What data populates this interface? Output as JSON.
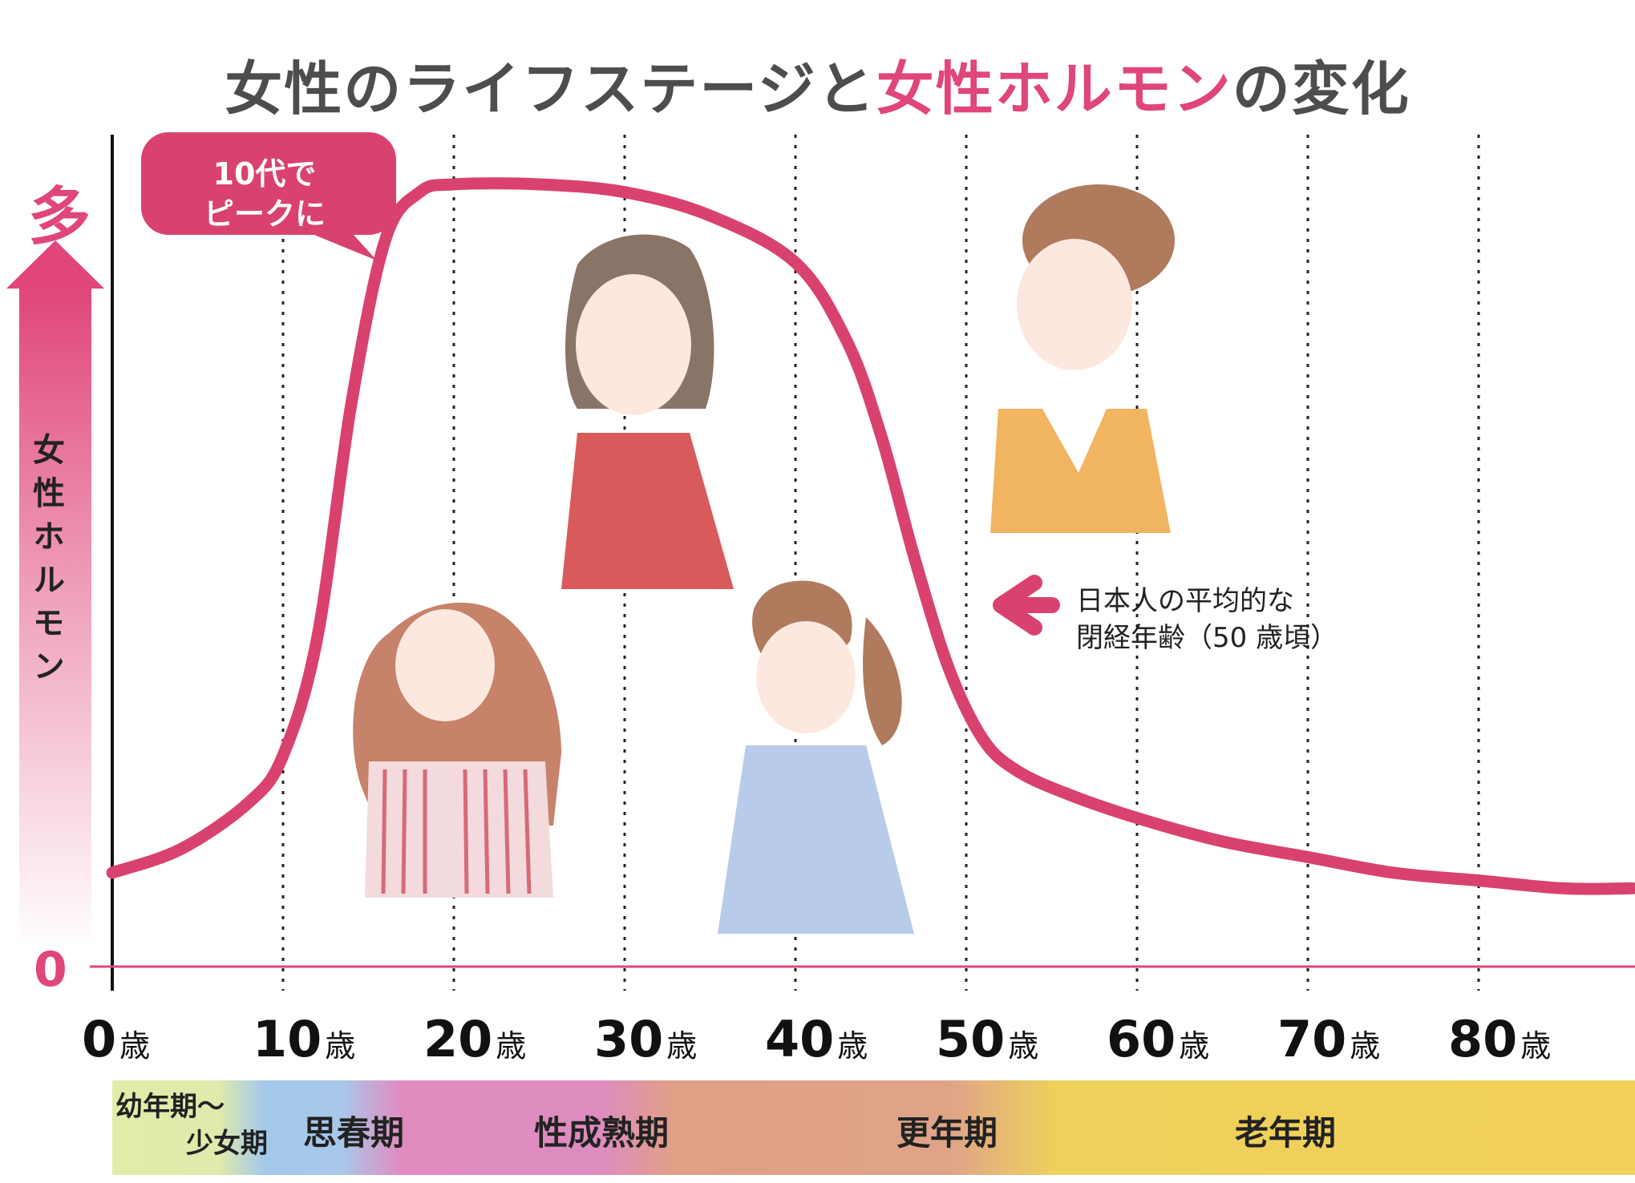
{
  "title": {
    "part1": "女性のライフステージと",
    "part2": "女性ホルモン",
    "part3": "の変化"
  },
  "colors": {
    "accent": "#e0457b",
    "curve": "#d9426f",
    "text": "#4d4d4d"
  },
  "y_axis": {
    "top_label": "多",
    "zero_label": "0",
    "label": "女性ホルモン"
  },
  "callout": {
    "line1": "10代で",
    "line2": "ピークに"
  },
  "menopause_note": {
    "line1": "日本人の平均的な",
    "line2": "閉経年齢（50 歳頃）"
  },
  "stages": [
    {
      "line1": "幼年期〜",
      "line2": "少女期"
    },
    {
      "label": "思春期"
    },
    {
      "label": "性成熟期"
    },
    {
      "label": "更年期"
    },
    {
      "label": "老年期"
    }
  ],
  "chart_data": {
    "type": "line",
    "title": "女性のライフステージと女性ホルモンの変化",
    "xlabel": "",
    "ylabel": "女性ホルモン",
    "tick_unit": "歳",
    "x_ticks": [
      0,
      10,
      20,
      30,
      40,
      50,
      60,
      70,
      80
    ],
    "xlim": [
      0,
      89
    ],
    "ylim": [
      0,
      100
    ],
    "grid": "vertical dotted",
    "series": [
      {
        "x": [
          0,
          4,
          8,
          10,
          12,
          14,
          16,
          18,
          20,
          25,
          30,
          35,
          40,
          43,
          45,
          47,
          49,
          51,
          53,
          56,
          60,
          65,
          70,
          75,
          80,
          85,
          89
        ],
        "values": [
          12,
          15,
          21,
          27,
          42,
          72,
          93,
          99,
          100,
          100,
          99,
          96,
          90,
          80,
          68,
          52,
          38,
          29,
          25,
          22,
          19,
          16,
          14,
          12,
          11,
          10,
          10
        ]
      }
    ]
  }
}
